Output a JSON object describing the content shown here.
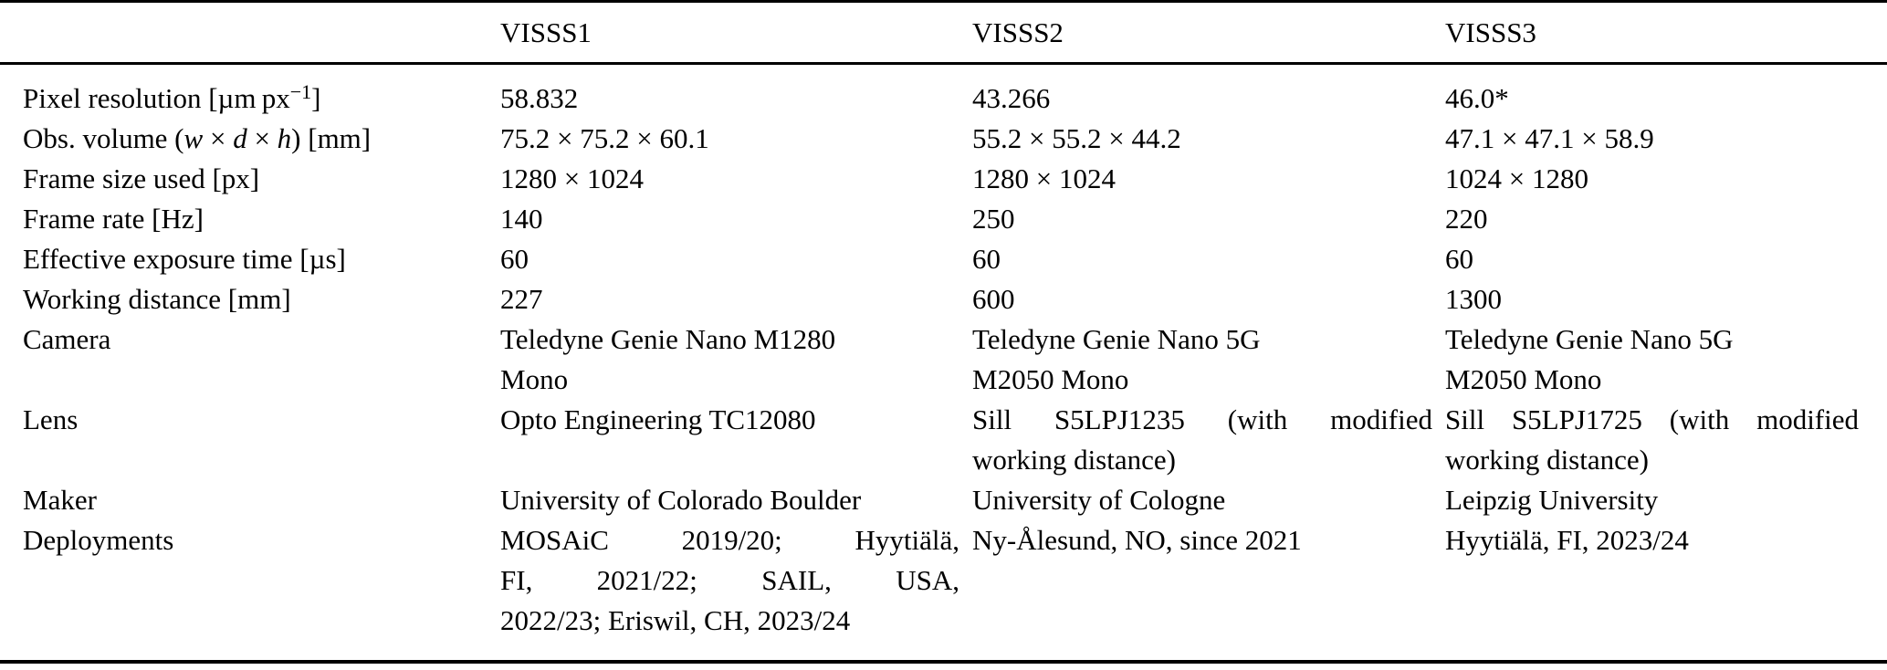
{
  "table": {
    "columns": [
      "",
      "VISSS1",
      "VISSS2",
      "VISSS3"
    ],
    "rows": [
      {
        "key": "pixel-resolution",
        "label": "Pixel resolution [µm px<sup>−1</sup>]",
        "cells": [
          {
            "lines": [
              "58.832"
            ]
          },
          {
            "lines": [
              "43.266"
            ]
          },
          {
            "lines": [
              "46.0*"
            ]
          }
        ]
      },
      {
        "key": "obs-volume",
        "label": "Obs. volume (<i>w</i> × <i>d</i> × <i>h</i>) [mm]",
        "cells": [
          {
            "lines": [
              "75.2 × 75.2 × 60.1"
            ]
          },
          {
            "lines": [
              "55.2 × 55.2 × 44.2"
            ]
          },
          {
            "lines": [
              "47.1 × 47.1 × 58.9"
            ]
          }
        ]
      },
      {
        "key": "frame-size",
        "label": "Frame size used [px]",
        "cells": [
          {
            "lines": [
              "1280 × 1024"
            ]
          },
          {
            "lines": [
              "1280 × 1024"
            ]
          },
          {
            "lines": [
              "1024 × 1280"
            ]
          }
        ]
      },
      {
        "key": "frame-rate",
        "label": "Frame rate [Hz]",
        "cells": [
          {
            "lines": [
              "140"
            ]
          },
          {
            "lines": [
              "250"
            ]
          },
          {
            "lines": [
              "220"
            ]
          }
        ]
      },
      {
        "key": "exposure-time",
        "label": "Effective exposure time [µs]",
        "cells": [
          {
            "lines": [
              "60"
            ]
          },
          {
            "lines": [
              "60"
            ]
          },
          {
            "lines": [
              "60"
            ]
          }
        ]
      },
      {
        "key": "working-distance",
        "label": "Working distance [mm]",
        "cells": [
          {
            "lines": [
              "227"
            ]
          },
          {
            "lines": [
              "600"
            ]
          },
          {
            "lines": [
              "1300"
            ]
          }
        ]
      },
      {
        "key": "camera",
        "label": "Camera",
        "cells": [
          {
            "lines": [
              "Teledyne Genie Nano M1280",
              "Mono"
            ]
          },
          {
            "lines": [
              "Teledyne Genie Nano 5G",
              "M2050 Mono"
            ]
          },
          {
            "lines": [
              "Teledyne Genie Nano 5G",
              "M2050 Mono"
            ]
          }
        ]
      },
      {
        "key": "lens",
        "label": "Lens",
        "cells": [
          {
            "lines": [
              "Opto Engineering TC12080"
            ]
          },
          {
            "lines": [
              "Sill S5LPJ1235 (with modified",
              "working distance)"
            ],
            "justify": true
          },
          {
            "lines": [
              "Sill S5LPJ1725 (with modified",
              "working distance)"
            ],
            "justify": true
          }
        ]
      },
      {
        "key": "maker",
        "label": "Maker",
        "cells": [
          {
            "lines": [
              "University of Colorado Boulder"
            ]
          },
          {
            "lines": [
              "University of Cologne"
            ]
          },
          {
            "lines": [
              "Leipzig University"
            ]
          }
        ]
      },
      {
        "key": "deployments",
        "label": "Deployments",
        "cells": [
          {
            "lines": [
              "MOSAiC 2019/20; Hyytiälä,",
              "FI, 2021/22; SAIL, USA,",
              "2022/23; Eriswil, CH, 2023/24"
            ],
            "justify": true
          },
          {
            "lines": [
              "Ny-Ålesund, NO, since 2021"
            ]
          },
          {
            "lines": [
              "Hyytiälä, FI, 2023/24"
            ]
          }
        ]
      }
    ]
  }
}
